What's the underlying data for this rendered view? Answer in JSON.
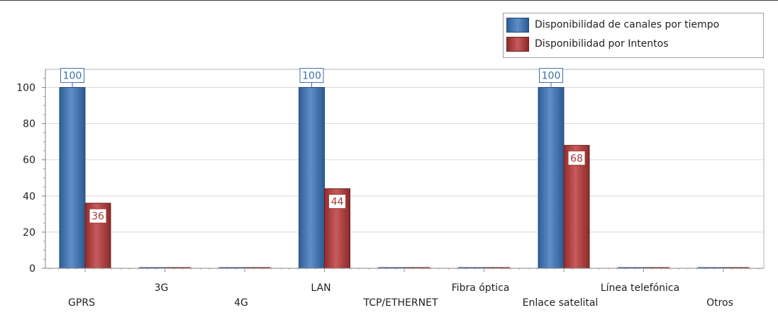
{
  "chart_data": {
    "type": "bar",
    "categories": [
      "GPRS",
      "3G",
      "4G",
      "LAN",
      "TCP/ETHERNET",
      "Fibra óptica",
      "Enlace satelital",
      "Línea telefónica",
      "Otros"
    ],
    "series": [
      {
        "name": "Disponibilidad de canales por tiempo",
        "values": [
          100,
          0,
          0,
          100,
          0,
          0,
          100,
          0,
          0
        ],
        "color": "#3d6fa8",
        "data_labels": [
          "100",
          "",
          "",
          "100",
          "",
          "",
          "100",
          "",
          ""
        ]
      },
      {
        "name": "Disponibilidad por Intentos",
        "values": [
          36,
          0,
          0,
          44,
          0,
          0,
          68,
          0,
          0
        ],
        "color": "#a33b3b",
        "data_labels": [
          "36",
          "",
          "",
          "44",
          "",
          "",
          "68",
          "",
          ""
        ]
      }
    ],
    "y_ticks": [
      "0",
      "20",
      "40",
      "60",
      "80",
      "100"
    ],
    "ylim": [
      0,
      110
    ],
    "grid": true,
    "legend_position": "top-right"
  }
}
